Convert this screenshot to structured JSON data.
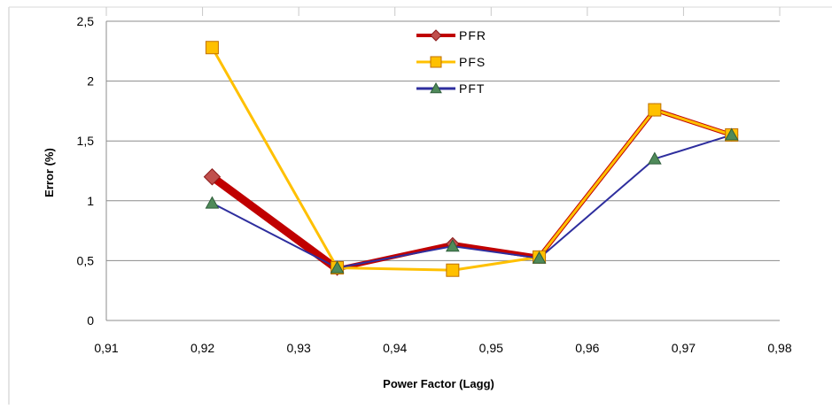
{
  "chart_data": {
    "type": "line",
    "title": "",
    "xlabel": "Power Factor (Lagg)",
    "ylabel": "Error (%)",
    "xlim": [
      0.91,
      0.98
    ],
    "ylim": [
      0,
      2.5
    ],
    "x_ticks": [
      "0,91",
      "0,92",
      "0,93",
      "0,94",
      "0,95",
      "0,96",
      "0,97",
      "0,98"
    ],
    "y_ticks": [
      "0",
      "0,5",
      "1",
      "1,5",
      "2",
      "2,5"
    ],
    "grid": "horizontal",
    "legend_position": "top-center",
    "x": [
      0.921,
      0.934,
      0.946,
      0.955,
      0.967,
      0.975
    ],
    "series": [
      {
        "name": "PFR",
        "values": [
          1.2,
          0.43,
          0.64,
          0.53,
          1.76,
          1.55
        ],
        "color": "#c00000",
        "marker": "diamond",
        "marker_color": "#c0504d"
      },
      {
        "name": "PFS",
        "values": [
          2.28,
          0.44,
          0.42,
          0.53,
          1.76,
          1.55
        ],
        "color": "#ffc000",
        "marker": "square",
        "marker_color": "#ffc000"
      },
      {
        "name": "PFT",
        "values": [
          0.98,
          0.44,
          0.62,
          0.52,
          1.35,
          1.55
        ],
        "color": "#2e2e9e",
        "marker": "triangle",
        "marker_color": "#4f8a5a"
      }
    ]
  }
}
